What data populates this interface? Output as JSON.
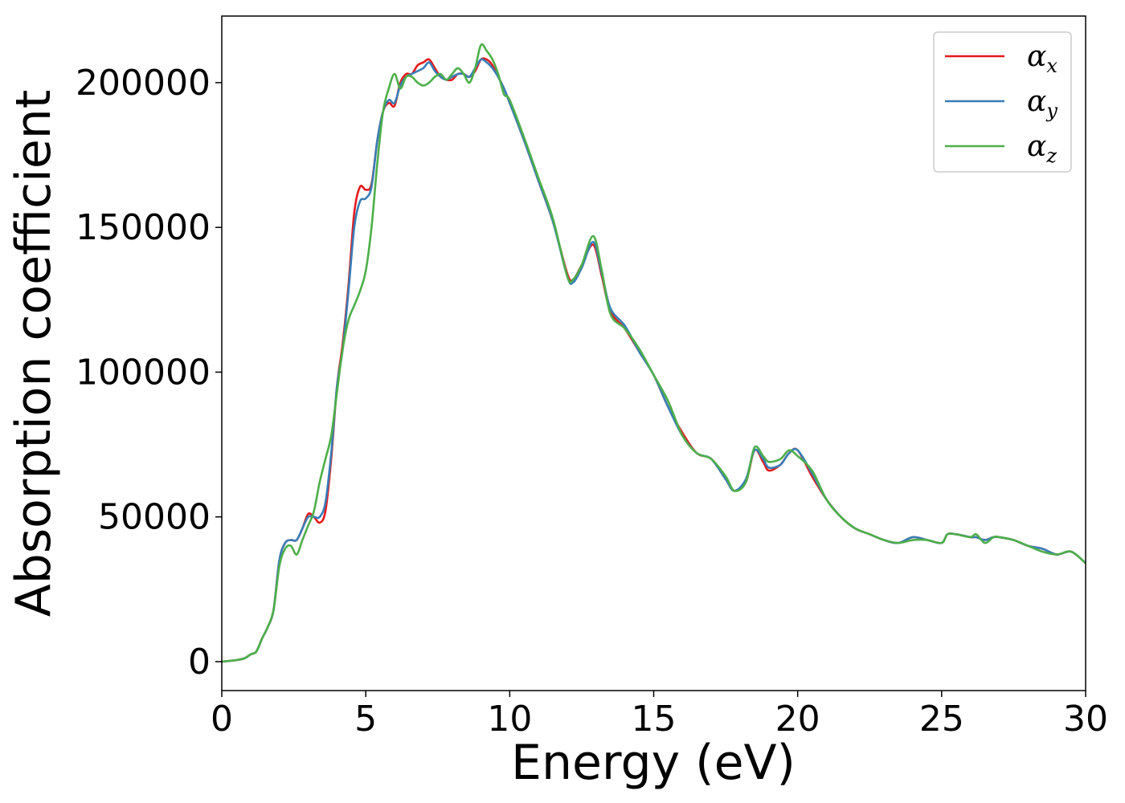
{
  "chart_data": {
    "type": "line",
    "xlabel": "Energy (eV)",
    "ylabel": "Absorption coefficient",
    "xlim": [
      0,
      30
    ],
    "ylim": [
      -10000,
      223000
    ],
    "xticks": [
      0,
      5,
      10,
      15,
      20,
      25,
      30
    ],
    "yticks": [
      0,
      50000,
      100000,
      150000,
      200000
    ],
    "grid": false,
    "legend_position": "top-right",
    "series": [
      {
        "name": "αx",
        "symbol": "α",
        "subscript": "x",
        "color": "#e41a1c",
        "x": [
          0,
          0.5,
          0.8,
          1.0,
          1.2,
          1.4,
          1.6,
          1.8,
          2.0,
          2.2,
          2.4,
          2.6,
          2.8,
          3.0,
          3.2,
          3.4,
          3.6,
          3.8,
          4.0,
          4.2,
          4.4,
          4.6,
          4.8,
          5.0,
          5.2,
          5.4,
          5.6,
          5.8,
          6.0,
          6.2,
          6.4,
          6.6,
          6.8,
          7.0,
          7.2,
          7.4,
          7.6,
          7.8,
          8.0,
          8.2,
          8.4,
          8.6,
          8.8,
          9.0,
          9.2,
          9.4,
          9.6,
          9.8,
          10.0,
          10.5,
          11.0,
          11.5,
          12.0,
          12.2,
          12.5,
          12.9,
          13.2,
          13.5,
          14.0,
          14.5,
          15.0,
          15.5,
          16.0,
          16.5,
          17.0,
          17.5,
          17.8,
          18.2,
          18.5,
          18.8,
          19.0,
          19.4,
          19.7,
          20.0,
          20.5,
          21.0,
          21.5,
          22.0,
          22.5,
          23.0,
          23.5,
          24.0,
          24.5,
          25.0,
          25.2,
          25.5,
          26.0,
          26.2,
          26.5,
          26.8,
          27.0,
          27.5,
          28.0,
          28.5,
          29.0,
          29.5,
          30.0
        ],
        "y": [
          0,
          500,
          1200,
          2500,
          3500,
          8000,
          12000,
          18000,
          35000,
          41000,
          42000,
          42000,
          46000,
          51000,
          50000,
          48000,
          52000,
          70000,
          95000,
          110000,
          130000,
          155000,
          164000,
          163000,
          165000,
          180000,
          190000,
          193000,
          192000,
          200000,
          203000,
          203000,
          206000,
          207000,
          208000,
          205000,
          202000,
          201000,
          201000,
          203000,
          203000,
          202000,
          204000,
          208000,
          208000,
          206000,
          202000,
          198000,
          193000,
          180000,
          166000,
          152000,
          134000,
          132000,
          137000,
          144000,
          133000,
          121000,
          115000,
          107000,
          99000,
          88000,
          79000,
          72000,
          70000,
          63000,
          59000,
          62000,
          73000,
          69000,
          66000,
          68000,
          72000,
          73000,
          64000,
          56000,
          50000,
          46000,
          44000,
          42000,
          41000,
          43000,
          42000,
          41000,
          44000,
          44000,
          43000,
          43000,
          42000,
          43000,
          43000,
          42000,
          40000,
          39000,
          37000,
          38000,
          34000
        ]
      },
      {
        "name": "αy",
        "symbol": "α",
        "subscript": "y",
        "color": "#377eb8",
        "x": [
          0,
          0.5,
          0.8,
          1.0,
          1.2,
          1.4,
          1.6,
          1.8,
          2.0,
          2.2,
          2.4,
          2.6,
          2.8,
          3.0,
          3.2,
          3.4,
          3.6,
          3.8,
          4.0,
          4.2,
          4.4,
          4.6,
          4.8,
          5.0,
          5.2,
          5.4,
          5.6,
          5.8,
          6.0,
          6.2,
          6.4,
          6.6,
          6.8,
          7.0,
          7.2,
          7.4,
          7.6,
          7.8,
          8.0,
          8.2,
          8.4,
          8.6,
          8.8,
          9.0,
          9.2,
          9.4,
          9.6,
          9.8,
          10.0,
          10.5,
          11.0,
          11.5,
          12.0,
          12.2,
          12.5,
          12.9,
          13.2,
          13.5,
          14.0,
          14.5,
          15.0,
          15.5,
          16.0,
          16.5,
          17.0,
          17.5,
          17.8,
          18.2,
          18.5,
          18.8,
          19.0,
          19.4,
          19.7,
          20.0,
          20.5,
          21.0,
          21.5,
          22.0,
          22.5,
          23.0,
          23.5,
          24.0,
          24.5,
          25.0,
          25.2,
          25.5,
          26.0,
          26.2,
          26.5,
          26.8,
          27.0,
          27.5,
          28.0,
          28.5,
          29.0,
          29.5,
          30.0
        ],
        "y": [
          0,
          500,
          1200,
          2500,
          3500,
          8000,
          12000,
          18000,
          35000,
          41000,
          42000,
          42000,
          46000,
          50000,
          50000,
          50000,
          55000,
          72000,
          95000,
          108000,
          128000,
          150000,
          159000,
          160000,
          164000,
          180000,
          190000,
          194000,
          193000,
          199000,
          202000,
          203000,
          204000,
          205000,
          207000,
          204000,
          202000,
          201000,
          202000,
          203000,
          203000,
          202000,
          205000,
          208000,
          207000,
          205000,
          202000,
          198000,
          193000,
          180000,
          166000,
          152000,
          133000,
          131000,
          136000,
          145000,
          134000,
          122000,
          116000,
          107000,
          99000,
          88000,
          78000,
          72000,
          70000,
          63000,
          59000,
          63000,
          73000,
          70000,
          67000,
          68000,
          72000,
          73000,
          65000,
          56000,
          50000,
          46000,
          44000,
          42000,
          41000,
          43000,
          42000,
          41000,
          44000,
          44000,
          43000,
          43000,
          42000,
          43000,
          43000,
          42000,
          40000,
          39000,
          37000,
          38000,
          34000
        ]
      },
      {
        "name": "αz",
        "symbol": "α",
        "subscript": "z",
        "color": "#4daf4a",
        "x": [
          0,
          0.5,
          0.8,
          1.0,
          1.2,
          1.4,
          1.6,
          1.8,
          2.0,
          2.2,
          2.4,
          2.6,
          2.8,
          3.0,
          3.2,
          3.4,
          3.6,
          3.8,
          4.0,
          4.2,
          4.4,
          4.6,
          4.8,
          5.0,
          5.2,
          5.4,
          5.6,
          5.8,
          6.0,
          6.2,
          6.4,
          6.6,
          6.8,
          7.0,
          7.2,
          7.4,
          7.6,
          7.8,
          8.0,
          8.2,
          8.4,
          8.6,
          8.8,
          9.0,
          9.2,
          9.4,
          9.6,
          9.8,
          10.0,
          10.5,
          11.0,
          11.5,
          12.0,
          12.2,
          12.5,
          12.9,
          13.2,
          13.5,
          14.0,
          14.5,
          15.0,
          15.5,
          16.0,
          16.5,
          17.0,
          17.5,
          17.8,
          18.2,
          18.5,
          18.8,
          19.0,
          19.4,
          19.7,
          20.0,
          20.5,
          21.0,
          21.5,
          22.0,
          22.5,
          23.0,
          23.5,
          24.0,
          24.5,
          25.0,
          25.2,
          25.5,
          26.0,
          26.2,
          26.5,
          26.8,
          27.0,
          27.5,
          28.0,
          28.5,
          29.0,
          29.5,
          30.0
        ],
        "y": [
          0,
          500,
          1200,
          2500,
          3500,
          8000,
          12000,
          18000,
          33000,
          39000,
          40000,
          37000,
          42000,
          47000,
          52000,
          62000,
          70000,
          78000,
          93000,
          108000,
          118000,
          123000,
          128000,
          135000,
          150000,
          172000,
          190000,
          198000,
          203000,
          198000,
          202000,
          202000,
          200000,
          199000,
          200000,
          202000,
          203000,
          201000,
          203000,
          205000,
          203000,
          200000,
          205000,
          213000,
          211000,
          208000,
          203000,
          196000,
          194000,
          181000,
          167000,
          153000,
          133000,
          132000,
          137000,
          147000,
          135000,
          120000,
          115000,
          108000,
          99000,
          90000,
          78000,
          72000,
          70000,
          64000,
          59000,
          62000,
          74000,
          71000,
          69000,
          70000,
          73000,
          71000,
          66000,
          56000,
          50000,
          46000,
          44000,
          42000,
          41000,
          42000,
          42000,
          41000,
          44000,
          44000,
          43000,
          44000,
          41000,
          43000,
          43000,
          42000,
          40000,
          38000,
          37000,
          38000,
          34000
        ]
      }
    ]
  }
}
